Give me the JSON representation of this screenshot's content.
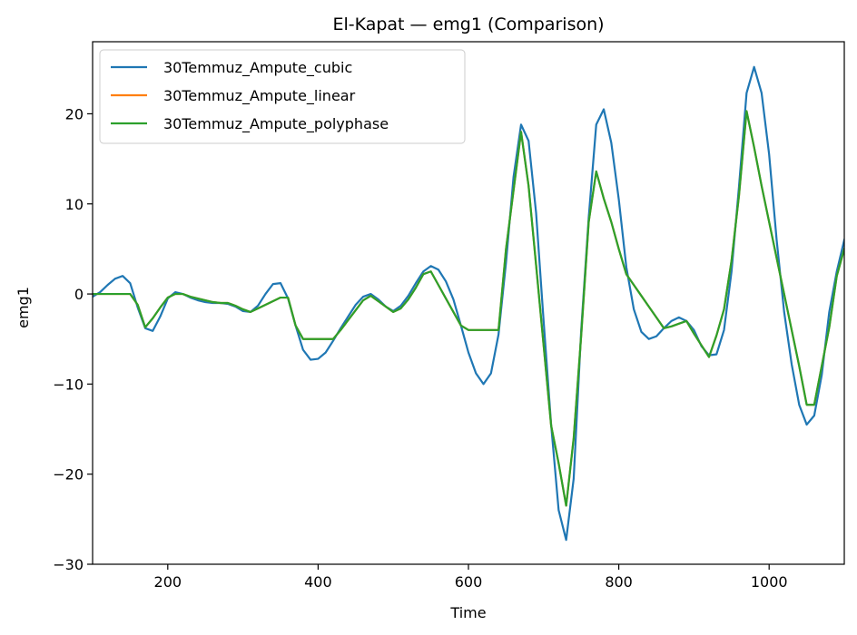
{
  "chart_data": {
    "type": "line",
    "title": "El-Kapat — emg1 (Comparison)",
    "xlabel": "Time",
    "ylabel": "emg1",
    "xlim": [
      100,
      1100
    ],
    "ylim": [
      -30,
      28
    ],
    "xticks": [
      200,
      400,
      600,
      800,
      1000
    ],
    "yticks": [
      -30,
      -20,
      -10,
      0,
      10,
      20
    ],
    "ytick_labels": [
      "−30",
      "−20",
      "−10",
      "0",
      "10",
      "20"
    ],
    "grid": false,
    "legend_position": "top-left",
    "series": [
      {
        "name": "30Temmuz_Ampute_cubic",
        "color": "#1f77b4",
        "x": [
          100,
          110,
          120,
          130,
          140,
          150,
          160,
          170,
          180,
          190,
          200,
          210,
          220,
          230,
          240,
          250,
          260,
          270,
          280,
          290,
          300,
          310,
          320,
          330,
          340,
          350,
          360,
          370,
          380,
          390,
          400,
          410,
          420,
          430,
          440,
          450,
          460,
          470,
          480,
          490,
          500,
          510,
          520,
          530,
          540,
          550,
          560,
          570,
          580,
          590,
          600,
          610,
          620,
          630,
          640,
          650,
          660,
          670,
          680,
          690,
          700,
          710,
          720,
          730,
          740,
          750,
          760,
          770,
          780,
          790,
          800,
          810,
          820,
          830,
          840,
          850,
          860,
          870,
          880,
          890,
          900,
          910,
          920,
          930,
          940,
          950,
          960,
          970,
          980,
          990,
          1000,
          1010,
          1020,
          1030,
          1040,
          1050,
          1060,
          1070,
          1080,
          1090,
          1100
        ],
        "y": [
          -0.3,
          0.2,
          1.0,
          1.7,
          2.0,
          1.2,
          -1.5,
          -3.8,
          -4.1,
          -2.5,
          -0.5,
          0.2,
          0.0,
          -0.4,
          -0.7,
          -0.9,
          -1.0,
          -1.0,
          -1.1,
          -1.4,
          -1.9,
          -2.0,
          -1.3,
          0.0,
          1.1,
          1.2,
          -0.5,
          -3.5,
          -6.2,
          -7.3,
          -7.2,
          -6.5,
          -5.2,
          -3.8,
          -2.5,
          -1.2,
          -0.3,
          0.0,
          -0.6,
          -1.4,
          -1.9,
          -1.3,
          -0.2,
          1.2,
          2.5,
          3.1,
          2.7,
          1.4,
          -0.6,
          -3.5,
          -6.5,
          -8.8,
          -10.0,
          -8.8,
          -4.5,
          3.5,
          13.0,
          18.8,
          17.0,
          9.0,
          -3.0,
          -14.5,
          -24.0,
          -27.3,
          -20.5,
          -4.0,
          8.5,
          18.8,
          20.5,
          16.8,
          10.5,
          3.0,
          -1.7,
          -4.2,
          -5.0,
          -4.7,
          -3.8,
          -3.0,
          -2.6,
          -3.0,
          -4.0,
          -5.8,
          -6.8,
          -6.7,
          -4.0,
          2.5,
          12.0,
          22.3,
          25.2,
          22.3,
          15.5,
          6.0,
          -2.0,
          -7.8,
          -12.3,
          -14.5,
          -13.5,
          -9.0,
          -2.0,
          2.5,
          6.0
        ]
      },
      {
        "name": "30Temmuz_Ampute_linear",
        "color": "#ff7f0e",
        "x": [
          100,
          110,
          120,
          130,
          140,
          150,
          160,
          170,
          180,
          190,
          200,
          210,
          220,
          230,
          240,
          250,
          260,
          270,
          280,
          290,
          300,
          310,
          320,
          330,
          340,
          350,
          360,
          370,
          380,
          390,
          400,
          410,
          420,
          430,
          440,
          450,
          460,
          470,
          480,
          490,
          500,
          510,
          520,
          530,
          540,
          550,
          560,
          570,
          580,
          590,
          600,
          610,
          620,
          630,
          640,
          650,
          660,
          670,
          680,
          690,
          700,
          710,
          720,
          730,
          740,
          750,
          760,
          770,
          780,
          790,
          800,
          810,
          820,
          830,
          840,
          850,
          860,
          870,
          880,
          890,
          900,
          910,
          920,
          930,
          940,
          950,
          960,
          970,
          980,
          990,
          1000,
          1010,
          1020,
          1030,
          1040,
          1050,
          1060,
          1070,
          1080,
          1090,
          1100
        ],
        "y": [
          0.0,
          0.0,
          0.0,
          0.0,
          0.0,
          0.0,
          -1.2,
          -3.7,
          -2.7,
          -1.5,
          -0.4,
          0.0,
          0.0,
          -0.3,
          -0.5,
          -0.7,
          -0.9,
          -1.0,
          -1.0,
          -1.3,
          -1.7,
          -2.0,
          -1.6,
          -1.2,
          -0.8,
          -0.4,
          -0.4,
          -3.5,
          -5.0,
          -5.0,
          -5.0,
          -5.0,
          -5.0,
          -4.0,
          -2.9,
          -1.8,
          -0.7,
          -0.2,
          -0.8,
          -1.4,
          -2.0,
          -1.6,
          -0.6,
          0.7,
          2.2,
          2.5,
          1.0,
          -0.5,
          -2.0,
          -3.5,
          -4.0,
          -4.0,
          -4.0,
          -4.0,
          -4.0,
          5.0,
          11.5,
          18.0,
          12.0,
          3.2,
          -5.7,
          -14.6,
          -18.8,
          -23.5,
          -16.0,
          -4.6,
          8.0,
          13.6,
          10.6,
          8.0,
          5.0,
          2.2,
          1.0,
          -0.2,
          -1.4,
          -2.6,
          -3.8,
          -3.6,
          -3.3,
          -3.0,
          -4.4,
          -5.7,
          -7.0,
          -4.6,
          -1.7,
          3.7,
          11.0,
          20.3,
          16.3,
          12.0,
          8.0,
          4.0,
          0.0,
          -4.0,
          -8.0,
          -12.3,
          -12.3,
          -8.0,
          -3.7,
          2.0,
          5.0
        ]
      },
      {
        "name": "30Temmuz_Ampute_polyphase",
        "color": "#2ca02c",
        "x": [
          100,
          110,
          120,
          130,
          140,
          150,
          160,
          170,
          180,
          190,
          200,
          210,
          220,
          230,
          240,
          250,
          260,
          270,
          280,
          290,
          300,
          310,
          320,
          330,
          340,
          350,
          360,
          370,
          380,
          390,
          400,
          410,
          420,
          430,
          440,
          450,
          460,
          470,
          480,
          490,
          500,
          510,
          520,
          530,
          540,
          550,
          560,
          570,
          580,
          590,
          600,
          610,
          620,
          630,
          640,
          650,
          660,
          670,
          680,
          690,
          700,
          710,
          720,
          730,
          740,
          750,
          760,
          770,
          780,
          790,
          800,
          810,
          820,
          830,
          840,
          850,
          860,
          870,
          880,
          890,
          900,
          910,
          920,
          930,
          940,
          950,
          960,
          970,
          980,
          990,
          1000,
          1010,
          1020,
          1030,
          1040,
          1050,
          1060,
          1070,
          1080,
          1090,
          1100
        ],
        "y": [
          0.0,
          0.0,
          0.0,
          0.0,
          0.0,
          0.0,
          -1.2,
          -3.7,
          -2.7,
          -1.5,
          -0.4,
          0.0,
          0.0,
          -0.3,
          -0.5,
          -0.7,
          -0.9,
          -1.0,
          -1.0,
          -1.3,
          -1.7,
          -2.0,
          -1.6,
          -1.2,
          -0.8,
          -0.4,
          -0.4,
          -3.5,
          -5.0,
          -5.0,
          -5.0,
          -5.0,
          -5.0,
          -4.0,
          -2.9,
          -1.8,
          -0.7,
          -0.2,
          -0.8,
          -1.4,
          -2.0,
          -1.6,
          -0.6,
          0.7,
          2.2,
          2.5,
          1.0,
          -0.5,
          -2.0,
          -3.5,
          -4.0,
          -4.0,
          -4.0,
          -4.0,
          -4.0,
          5.0,
          11.5,
          18.0,
          12.0,
          3.2,
          -5.7,
          -14.6,
          -18.8,
          -23.5,
          -16.0,
          -4.6,
          8.0,
          13.6,
          10.6,
          8.0,
          5.0,
          2.2,
          1.0,
          -0.2,
          -1.4,
          -2.6,
          -3.8,
          -3.6,
          -3.3,
          -3.0,
          -4.4,
          -5.7,
          -7.0,
          -4.6,
          -1.7,
          3.7,
          11.0,
          20.3,
          16.3,
          12.0,
          8.0,
          4.0,
          0.0,
          -4.0,
          -8.0,
          -12.3,
          -12.3,
          -8.0,
          -3.7,
          2.0,
          5.0
        ]
      }
    ]
  }
}
